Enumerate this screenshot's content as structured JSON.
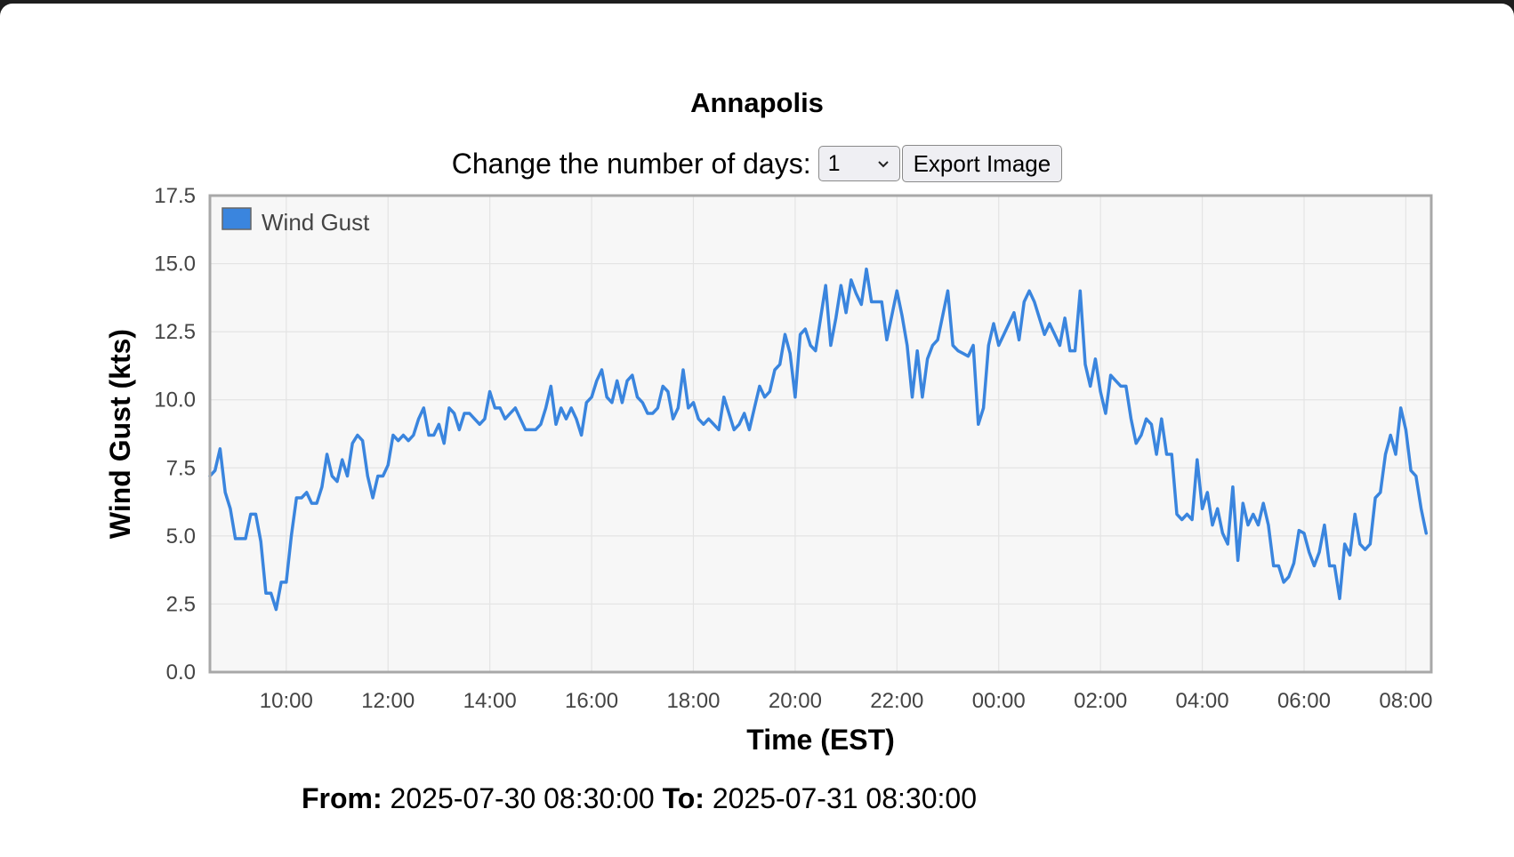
{
  "page": {
    "title": "Annapolis"
  },
  "controls": {
    "days_label": "Change the number of days:",
    "days_value": "1",
    "export_label": "Export Image"
  },
  "range": {
    "from_label": "From:",
    "from_value": "2025-07-30 08:30:00",
    "to_label": "To:",
    "to_value": "2025-07-31 08:30:00"
  },
  "colors": {
    "series": "#3a85de",
    "grid": "#e4e4e4",
    "plot_bg": "#f7f7f7",
    "frame": "#a8a8a8"
  },
  "chart_data": {
    "type": "line",
    "title": "Annapolis",
    "xlabel": "Time (EST)",
    "ylabel": "Wind Gust (kts)",
    "ylim": [
      0,
      17.5
    ],
    "xlim": [
      "2025-07-30 08:30",
      "2025-07-31 08:30"
    ],
    "x_ticks": [
      "10:00",
      "12:00",
      "14:00",
      "16:00",
      "18:00",
      "20:00",
      "22:00",
      "00:00",
      "02:00",
      "04:00",
      "06:00",
      "08:00"
    ],
    "y_ticks": [
      "0.0",
      "2.5",
      "5.0",
      "7.5",
      "10.0",
      "12.5",
      "15.0",
      "17.5"
    ],
    "grid": true,
    "legend_position": "top-left",
    "series": [
      {
        "name": "Wind Gust",
        "x": [
          "2025-07-30 08:30",
          "2025-07-30 08:36",
          "2025-07-30 08:42",
          "2025-07-30 08:48",
          "2025-07-30 08:54",
          "2025-07-30 09:00",
          "2025-07-30 09:06",
          "2025-07-30 09:12",
          "2025-07-30 09:18",
          "2025-07-30 09:24",
          "2025-07-30 09:30",
          "2025-07-30 09:36",
          "2025-07-30 09:42",
          "2025-07-30 09:48",
          "2025-07-30 09:54",
          "2025-07-30 10:00",
          "2025-07-30 10:06",
          "2025-07-30 10:12",
          "2025-07-30 10:18",
          "2025-07-30 10:24",
          "2025-07-30 10:30",
          "2025-07-30 10:36",
          "2025-07-30 10:42",
          "2025-07-30 10:48",
          "2025-07-30 10:54",
          "2025-07-30 11:00",
          "2025-07-30 11:06",
          "2025-07-30 11:12",
          "2025-07-30 11:18",
          "2025-07-30 11:24",
          "2025-07-30 11:30",
          "2025-07-30 11:36",
          "2025-07-30 11:42",
          "2025-07-30 11:48",
          "2025-07-30 11:54",
          "2025-07-30 12:00",
          "2025-07-30 12:06",
          "2025-07-30 12:12",
          "2025-07-30 12:18",
          "2025-07-30 12:24",
          "2025-07-30 12:30",
          "2025-07-30 12:36",
          "2025-07-30 12:42",
          "2025-07-30 12:48",
          "2025-07-30 12:54",
          "2025-07-30 13:00",
          "2025-07-30 13:06",
          "2025-07-30 13:12",
          "2025-07-30 13:18",
          "2025-07-30 13:24",
          "2025-07-30 13:30",
          "2025-07-30 13:36",
          "2025-07-30 13:42",
          "2025-07-30 13:48",
          "2025-07-30 13:54",
          "2025-07-30 14:00",
          "2025-07-30 14:06",
          "2025-07-30 14:12",
          "2025-07-30 14:18",
          "2025-07-30 14:24",
          "2025-07-30 14:30",
          "2025-07-30 14:36",
          "2025-07-30 14:42",
          "2025-07-30 14:48",
          "2025-07-30 14:54",
          "2025-07-30 15:00",
          "2025-07-30 15:06",
          "2025-07-30 15:12",
          "2025-07-30 15:18",
          "2025-07-30 15:24",
          "2025-07-30 15:30",
          "2025-07-30 15:36",
          "2025-07-30 15:42",
          "2025-07-30 15:48",
          "2025-07-30 15:54",
          "2025-07-30 16:00",
          "2025-07-30 16:06",
          "2025-07-30 16:12",
          "2025-07-30 16:18",
          "2025-07-30 16:24",
          "2025-07-30 16:30",
          "2025-07-30 16:36",
          "2025-07-30 16:42",
          "2025-07-30 16:48",
          "2025-07-30 16:54",
          "2025-07-30 17:00",
          "2025-07-30 17:06",
          "2025-07-30 17:12",
          "2025-07-30 17:18",
          "2025-07-30 17:24",
          "2025-07-30 17:30",
          "2025-07-30 17:36",
          "2025-07-30 17:42",
          "2025-07-30 17:48",
          "2025-07-30 17:54",
          "2025-07-30 18:00",
          "2025-07-30 18:06",
          "2025-07-30 18:12",
          "2025-07-30 18:18",
          "2025-07-30 18:24",
          "2025-07-30 18:30",
          "2025-07-30 18:36",
          "2025-07-30 18:42",
          "2025-07-30 18:48",
          "2025-07-30 18:54",
          "2025-07-30 19:00",
          "2025-07-30 19:06",
          "2025-07-30 19:12",
          "2025-07-30 19:18",
          "2025-07-30 19:24",
          "2025-07-30 19:30",
          "2025-07-30 19:36",
          "2025-07-30 19:42",
          "2025-07-30 19:48",
          "2025-07-30 19:54",
          "2025-07-30 20:00",
          "2025-07-30 20:06",
          "2025-07-30 20:12",
          "2025-07-30 20:18",
          "2025-07-30 20:24",
          "2025-07-30 20:30",
          "2025-07-30 20:36",
          "2025-07-30 20:42",
          "2025-07-30 20:48",
          "2025-07-30 20:54",
          "2025-07-30 21:00",
          "2025-07-30 21:06",
          "2025-07-30 21:12",
          "2025-07-30 21:18",
          "2025-07-30 21:24",
          "2025-07-30 21:30",
          "2025-07-30 21:36",
          "2025-07-30 21:42",
          "2025-07-30 21:48",
          "2025-07-30 21:54",
          "2025-07-30 22:00",
          "2025-07-30 22:06",
          "2025-07-30 22:12",
          "2025-07-30 22:18",
          "2025-07-30 22:24",
          "2025-07-30 22:30",
          "2025-07-30 22:36",
          "2025-07-30 22:42",
          "2025-07-30 22:48",
          "2025-07-30 22:54",
          "2025-07-30 23:00",
          "2025-07-30 23:06",
          "2025-07-30 23:12",
          "2025-07-30 23:18",
          "2025-07-30 23:24",
          "2025-07-30 23:30",
          "2025-07-30 23:36",
          "2025-07-30 23:42",
          "2025-07-30 23:48",
          "2025-07-30 23:54",
          "2025-07-31 00:00",
          "2025-07-31 00:06",
          "2025-07-31 00:12",
          "2025-07-31 00:18",
          "2025-07-31 00:24",
          "2025-07-31 00:30",
          "2025-07-31 00:36",
          "2025-07-31 00:42",
          "2025-07-31 00:48",
          "2025-07-31 00:54",
          "2025-07-31 01:00",
          "2025-07-31 01:06",
          "2025-07-31 01:12",
          "2025-07-31 01:18",
          "2025-07-31 01:24",
          "2025-07-31 01:30",
          "2025-07-31 01:36",
          "2025-07-31 01:42",
          "2025-07-31 01:48",
          "2025-07-31 01:54",
          "2025-07-31 02:00",
          "2025-07-31 02:06",
          "2025-07-31 02:12",
          "2025-07-31 02:18",
          "2025-07-31 02:24",
          "2025-07-31 02:30",
          "2025-07-31 02:36",
          "2025-07-31 02:42",
          "2025-07-31 02:48",
          "2025-07-31 02:54",
          "2025-07-31 03:00",
          "2025-07-31 03:06",
          "2025-07-31 03:12",
          "2025-07-31 03:18",
          "2025-07-31 03:24",
          "2025-07-31 03:30",
          "2025-07-31 03:36",
          "2025-07-31 03:42",
          "2025-07-31 03:48",
          "2025-07-31 03:54",
          "2025-07-31 04:00",
          "2025-07-31 04:06",
          "2025-07-31 04:12",
          "2025-07-31 04:18",
          "2025-07-31 04:24",
          "2025-07-31 04:30",
          "2025-07-31 04:36",
          "2025-07-31 04:42",
          "2025-07-31 04:48",
          "2025-07-31 04:54",
          "2025-07-31 05:00",
          "2025-07-31 05:06",
          "2025-07-31 05:12",
          "2025-07-31 05:18",
          "2025-07-31 05:24",
          "2025-07-31 05:30",
          "2025-07-31 05:36",
          "2025-07-31 05:42",
          "2025-07-31 05:48",
          "2025-07-31 05:54",
          "2025-07-31 06:00",
          "2025-07-31 06:06",
          "2025-07-31 06:12",
          "2025-07-31 06:18",
          "2025-07-31 06:24",
          "2025-07-31 06:30",
          "2025-07-31 06:36",
          "2025-07-31 06:42",
          "2025-07-31 06:48",
          "2025-07-31 06:54",
          "2025-07-31 07:00",
          "2025-07-31 07:06",
          "2025-07-31 07:12",
          "2025-07-31 07:18",
          "2025-07-31 07:24",
          "2025-07-31 07:30",
          "2025-07-31 07:36",
          "2025-07-31 07:42",
          "2025-07-31 07:48",
          "2025-07-31 07:54",
          "2025-07-31 08:00",
          "2025-07-31 08:06",
          "2025-07-31 08:12",
          "2025-07-31 08:18",
          "2025-07-31 08:24"
        ],
        "values": [
          7.2,
          7.4,
          8.2,
          6.6,
          6.0,
          4.9,
          4.9,
          4.9,
          5.8,
          5.8,
          4.8,
          2.9,
          2.9,
          2.3,
          3.3,
          3.3,
          5.0,
          6.4,
          6.4,
          6.6,
          6.2,
          6.2,
          6.8,
          8.0,
          7.2,
          7.0,
          7.8,
          7.2,
          8.4,
          8.7,
          8.5,
          7.2,
          6.4,
          7.2,
          7.2,
          7.6,
          8.7,
          8.5,
          8.7,
          8.5,
          8.7,
          9.3,
          9.7,
          8.7,
          8.7,
          9.1,
          8.4,
          9.7,
          9.5,
          8.9,
          9.5,
          9.5,
          9.3,
          9.1,
          9.3,
          10.3,
          9.7,
          9.7,
          9.3,
          9.5,
          9.7,
          9.3,
          8.9,
          8.9,
          8.9,
          9.1,
          9.7,
          10.5,
          9.1,
          9.7,
          9.3,
          9.7,
          9.3,
          8.7,
          9.9,
          10.1,
          10.7,
          11.1,
          10.1,
          9.9,
          10.7,
          9.9,
          10.7,
          10.9,
          10.1,
          9.9,
          9.5,
          9.5,
          9.7,
          10.5,
          10.3,
          9.3,
          9.7,
          11.1,
          9.7,
          9.9,
          9.3,
          9.1,
          9.3,
          9.1,
          8.9,
          10.1,
          9.5,
          8.9,
          9.1,
          9.5,
          8.9,
          9.7,
          10.5,
          10.1,
          10.3,
          11.1,
          11.3,
          12.4,
          11.7,
          10.1,
          12.4,
          12.6,
          12.0,
          11.8,
          13.0,
          14.2,
          12.0,
          13.0,
          14.2,
          13.2,
          14.4,
          13.9,
          13.5,
          14.8,
          13.6,
          13.6,
          13.6,
          12.2,
          13.1,
          14.0,
          13.1,
          12.0,
          10.1,
          11.8,
          10.1,
          11.5,
          12.0,
          12.2,
          13.1,
          14.0,
          12.0,
          11.8,
          11.7,
          11.6,
          12.0,
          9.1,
          9.7,
          12.0,
          12.8,
          12.0,
          12.4,
          12.8,
          13.2,
          12.2,
          13.6,
          14.0,
          13.6,
          13.0,
          12.4,
          12.8,
          12.4,
          12.0,
          13.0,
          11.8,
          11.8,
          14.0,
          11.3,
          10.5,
          11.5,
          10.3,
          9.5,
          10.9,
          10.7,
          10.5,
          10.5,
          9.3,
          8.4,
          8.7,
          9.3,
          9.1,
          8.0,
          9.3,
          8.0,
          8.0,
          5.8,
          5.6,
          5.8,
          5.6,
          7.8,
          6.0,
          6.6,
          5.4,
          6.0,
          5.1,
          4.7,
          6.8,
          4.1,
          6.2,
          5.4,
          5.8,
          5.4,
          6.2,
          5.4,
          3.9,
          3.9,
          3.3,
          3.5,
          4.0,
          5.2,
          5.1,
          4.4,
          3.9,
          4.4,
          5.4,
          3.9,
          3.9,
          2.7,
          4.7,
          4.3,
          5.8,
          4.7,
          4.5,
          4.7,
          6.4,
          6.6,
          8.0,
          8.7,
          8.0,
          9.7,
          8.9,
          7.4,
          7.2,
          6.0,
          5.1
        ]
      }
    ]
  }
}
